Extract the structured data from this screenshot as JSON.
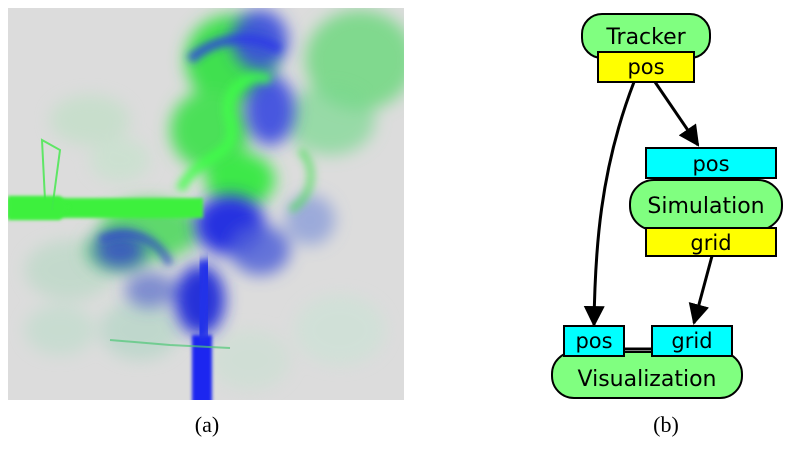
{
  "figure": {
    "panel_a": {
      "caption": "(a)",
      "colors": {
        "background": "#dcdcdc",
        "green": "#3cf03c",
        "blue": "#1e28e6"
      }
    },
    "panel_b": {
      "caption": "(b)",
      "colors": {
        "node_fill": "#80ff80",
        "input_port_fill": "#00ffff",
        "output_port_fill": "#ffff00",
        "stroke": "#000000"
      },
      "nodes": {
        "tracker": {
          "title": "Tracker",
          "output_port": "pos"
        },
        "simulation": {
          "title": "Simulation",
          "input_port": "pos",
          "output_port": "grid"
        },
        "visualization": {
          "title": "Visualization",
          "input_port_pos": "pos",
          "input_port_grid": "grid"
        }
      }
    }
  }
}
